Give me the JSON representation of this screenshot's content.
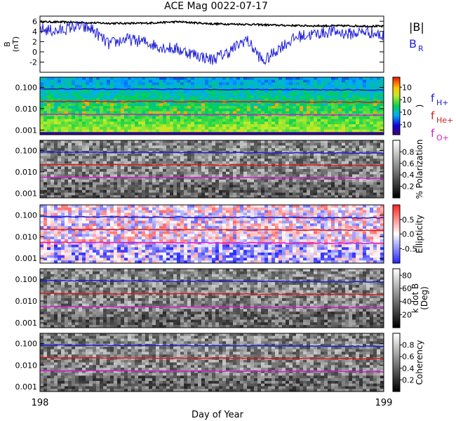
{
  "chart_data": [
    {
      "type": "line",
      "title": "ACE Mag 0022-07-17",
      "ylabel_line1": "B",
      "ylabel_line2": "(nT)",
      "yticks": [
        "6",
        "4",
        "2",
        "0",
        "-2"
      ],
      "ytick_values": [
        6,
        4,
        2,
        0,
        -2
      ],
      "ylim": [
        -4,
        7
      ],
      "series": [
        {
          "name": "|B|",
          "color": "#000000",
          "x": [
            198.0,
            198.1,
            198.2,
            198.3,
            198.4,
            198.5,
            198.6,
            198.7,
            198.8,
            198.9,
            199.0
          ],
          "values": [
            5.9,
            5.8,
            5.6,
            5.6,
            5.9,
            5.5,
            5.4,
            5.2,
            5.1,
            5.1,
            5.0
          ]
        },
        {
          "name": "B",
          "subscript": "R",
          "color": "#1f1fd6",
          "x": [
            198.0,
            198.05,
            198.1,
            198.15,
            198.2,
            198.25,
            198.3,
            198.35,
            198.4,
            198.45,
            198.5,
            198.55,
            198.6,
            198.65,
            198.7,
            198.75,
            198.8,
            198.85,
            198.9,
            198.95,
            199.0
          ],
          "values": [
            4.5,
            4.0,
            5.0,
            4.5,
            1.5,
            2.5,
            2.0,
            1.0,
            0.5,
            -0.5,
            -1.5,
            0.0,
            2.5,
            -2.0,
            1.0,
            3.0,
            3.5,
            4.0,
            3.5,
            4.0,
            3.0
          ]
        }
      ]
    },
    {
      "type": "heatmap",
      "yticks": [
        "0.100",
        "0.010",
        "0.001"
      ],
      "ytick_values": [
        0.1,
        0.01,
        0.001
      ],
      "colorbar": {
        "label": ")",
        "ticks": [
          "10",
          "10",
          "10",
          "10"
        ],
        "colormap": "rainbow"
      },
      "legend": [
        {
          "name": "f",
          "subscript": "H+",
          "color": "#2020d0"
        },
        {
          "name": "f",
          "subscript": "He+",
          "color": "#d02020"
        },
        {
          "name": "f",
          "subscript": "O+",
          "color": "#d020d0"
        }
      ],
      "lines": [
        {
          "name": "fH+",
          "color": "#2020d0",
          "x": [
            198.0,
            199.0
          ],
          "values": [
            0.085,
            0.075
          ]
        },
        {
          "name": "fHe+",
          "color": "#d02020",
          "x": [
            198.0,
            199.0
          ],
          "values": [
            0.022,
            0.02
          ]
        },
        {
          "name": "fO+",
          "color": "#d020d0",
          "x": [
            198.0,
            199.0
          ],
          "values": [
            0.0055,
            0.005
          ]
        }
      ]
    },
    {
      "type": "heatmap",
      "yticks": [
        "0.100",
        "0.010",
        "0.001"
      ],
      "ytick_values": [
        0.1,
        0.01,
        0.001
      ],
      "colorbar": {
        "label": "% Polarization",
        "ticks": [
          "0.8",
          "0.6",
          "0.4",
          "0.2"
        ],
        "tick_values": [
          0.8,
          0.6,
          0.4,
          0.2
        ],
        "range": [
          0.0,
          1.0
        ],
        "colormap": "gray"
      },
      "lines": [
        {
          "name": "fH+",
          "color": "#2020d0",
          "x": [
            198.0,
            199.0
          ],
          "values": [
            0.085,
            0.075
          ]
        },
        {
          "name": "fHe+",
          "color": "#d02020",
          "x": [
            198.0,
            199.0
          ],
          "values": [
            0.022,
            0.02
          ]
        },
        {
          "name": "fO+",
          "color": "#d020d0",
          "x": [
            198.0,
            199.0
          ],
          "values": [
            0.0055,
            0.005
          ]
        }
      ]
    },
    {
      "type": "heatmap",
      "yticks": [
        "0.100",
        "0.010",
        "0.001"
      ],
      "ytick_values": [
        0.1,
        0.01,
        0.001
      ],
      "colorbar": {
        "label": "Ellipticity",
        "ticks": [
          "0.5",
          "0.0",
          "-0.5"
        ],
        "tick_values": [
          0.5,
          0.0,
          -0.5
        ],
        "range": [
          -1.0,
          1.0
        ],
        "colormap": "bwr"
      },
      "lines": [
        {
          "name": "fH+",
          "color": "#2020d0",
          "x": [
            198.0,
            199.0
          ],
          "values": [
            0.085,
            0.075
          ]
        },
        {
          "name": "fHe+",
          "color": "#d02020",
          "x": [
            198.0,
            199.0
          ],
          "values": [
            0.022,
            0.02
          ]
        },
        {
          "name": "fO+",
          "color": "#d020d0",
          "x": [
            198.0,
            199.0
          ],
          "values": [
            0.0055,
            0.005
          ]
        }
      ]
    },
    {
      "type": "heatmap",
      "yticks": [
        "0.100",
        "0.010",
        "0.001"
      ],
      "ytick_values": [
        0.1,
        0.01,
        0.001
      ],
      "colorbar": {
        "label": "k dot B",
        "label2": "(Deg)",
        "ticks": [
          "80",
          "60",
          "40",
          "20"
        ],
        "tick_values": [
          80,
          60,
          40,
          20
        ],
        "range": [
          0,
          90
        ],
        "colormap": "gray"
      },
      "lines": [
        {
          "name": "fH+",
          "color": "#2020d0",
          "x": [
            198.0,
            199.0
          ],
          "values": [
            0.085,
            0.075
          ]
        },
        {
          "name": "fHe+",
          "color": "#d02020",
          "x": [
            198.0,
            199.0
          ],
          "values": [
            0.022,
            0.02
          ]
        },
        {
          "name": "fO+",
          "color": "#d020d0",
          "x": [
            198.0,
            199.0
          ],
          "values": [
            0.0055,
            0.005
          ]
        }
      ]
    },
    {
      "type": "heatmap",
      "yticks": [
        "0.100",
        "0.010",
        "0.001"
      ],
      "ytick_values": [
        0.1,
        0.01,
        0.001
      ],
      "colorbar": {
        "label": "Coherency",
        "ticks": [
          "0.8",
          "0.6",
          "0.4",
          "0.2"
        ],
        "tick_values": [
          0.8,
          0.6,
          0.4,
          0.2
        ],
        "range": [
          0.0,
          1.0
        ],
        "colormap": "gray"
      },
      "xlabel": "Day of Year",
      "xticks": [
        "198",
        "199"
      ],
      "xtick_values": [
        198,
        199
      ],
      "xlim": [
        198,
        199
      ],
      "lines": [
        {
          "name": "fH+",
          "color": "#2020d0",
          "x": [
            198.0,
            199.0
          ],
          "values": [
            0.085,
            0.075
          ]
        },
        {
          "name": "fHe+",
          "color": "#d02020",
          "x": [
            198.0,
            199.0
          ],
          "values": [
            0.022,
            0.02
          ]
        },
        {
          "name": "fO+",
          "color": "#d020d0",
          "x": [
            198.0,
            199.0
          ],
          "values": [
            0.0055,
            0.005
          ]
        }
      ]
    }
  ]
}
